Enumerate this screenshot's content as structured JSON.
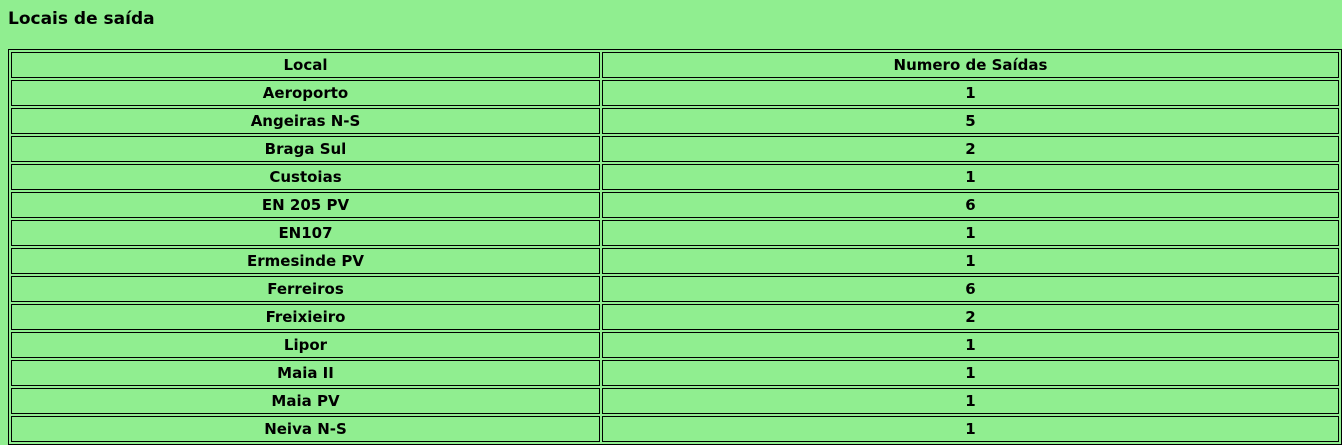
{
  "page": {
    "title": "Locais de saída"
  },
  "table": {
    "headers": [
      "Local",
      "Numero de Saídas"
    ],
    "rows": [
      [
        "Aeroporto",
        "1"
      ],
      [
        "Angeiras N-S",
        "5"
      ],
      [
        "Braga Sul",
        "2"
      ],
      [
        "Custoias",
        "1"
      ],
      [
        "EN 205 PV",
        "6"
      ],
      [
        "EN107",
        "1"
      ],
      [
        "Ermesinde PV",
        "1"
      ],
      [
        "Ferreiros",
        "6"
      ],
      [
        "Freixieiro",
        "2"
      ],
      [
        "Lipor",
        "1"
      ],
      [
        "Maia II",
        "1"
      ],
      [
        "Maia PV",
        "1"
      ],
      [
        "Neiva N-S",
        "1"
      ]
    ]
  }
}
